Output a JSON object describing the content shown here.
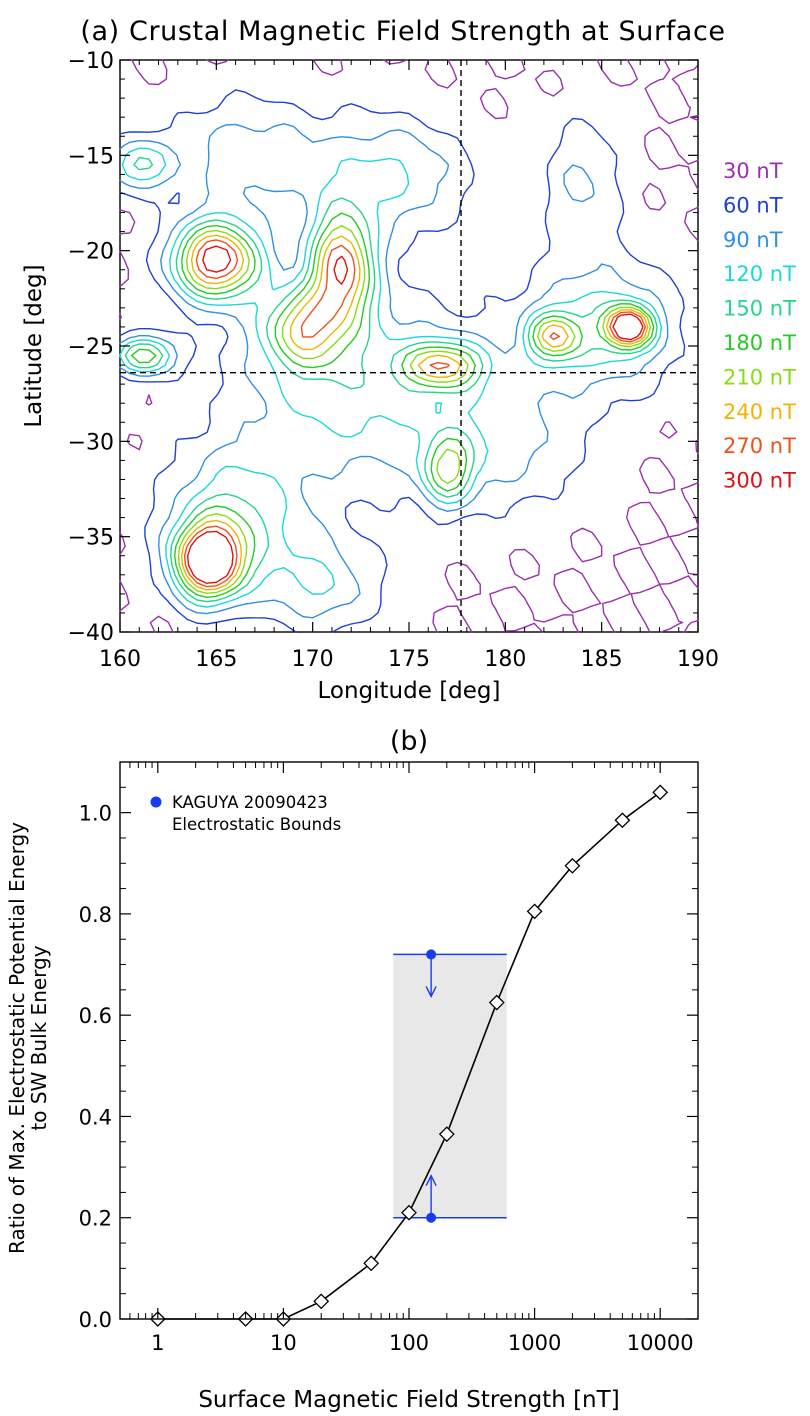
{
  "chart_data": [
    {
      "type": "contour",
      "title": "(a) Crustal Magnetic Field Strength at Surface",
      "xlabel": "Longitude [deg]",
      "ylabel": "Latitude [deg]",
      "xlim": [
        160,
        190
      ],
      "ylim": [
        -40,
        -10
      ],
      "xticks": [
        "160",
        "165",
        "170",
        "175",
        "180",
        "185",
        "190"
      ],
      "yticks": [
        "-10",
        "-15",
        "-20",
        "-25",
        "-30",
        "-35",
        "-40"
      ],
      "crosshair": {
        "longitude": 177.7,
        "latitude": -26.4
      },
      "grid": false,
      "legend_position": "right",
      "levels": [
        {
          "label": "30 nT",
          "value": 30,
          "color": "#9b2fae"
        },
        {
          "label": "60 nT",
          "value": 60,
          "color": "#1f3fd6"
        },
        {
          "label": "90 nT",
          "value": 90,
          "color": "#2f8fe8"
        },
        {
          "label": "120 nT",
          "value": 120,
          "color": "#1ad8d8"
        },
        {
          "label": "150 nT",
          "value": 150,
          "color": "#22d68a"
        },
        {
          "label": "180 nT",
          "value": 180,
          "color": "#22cc22"
        },
        {
          "label": "210 nT",
          "value": 210,
          "color": "#88dd11"
        },
        {
          "label": "240 nT",
          "value": 240,
          "color": "#f0b400"
        },
        {
          "label": "270 nT",
          "value": 270,
          "color": "#f0501c"
        },
        {
          "label": "300 nT",
          "value": 300,
          "color": "#e01010"
        }
      ],
      "peaks": [
        {
          "lon": 165.0,
          "lat": -20.5,
          "peak": 295,
          "rx": 2.2,
          "ry": 2.0
        },
        {
          "lon": 171.5,
          "lat": -20.8,
          "peak": 250,
          "rx": 1.6,
          "ry": 2.8
        },
        {
          "lon": 169.5,
          "lat": -24.0,
          "peak": 165,
          "rx": 2.0,
          "ry": 2.0
        },
        {
          "lon": 164.6,
          "lat": -36.3,
          "peak": 330,
          "rx": 1.7,
          "ry": 1.9
        },
        {
          "lon": 176.8,
          "lat": -26.0,
          "peak": 185,
          "rx": 2.0,
          "ry": 1.2
        },
        {
          "lon": 177.0,
          "lat": -31.5,
          "peak": 150,
          "rx": 1.3,
          "ry": 1.8
        },
        {
          "lon": 182.5,
          "lat": -24.5,
          "peak": 170,
          "rx": 1.3,
          "ry": 1.2
        },
        {
          "lon": 186.4,
          "lat": -24.0,
          "peak": 290,
          "rx": 1.1,
          "ry": 1.0
        },
        {
          "lon": 161.3,
          "lat": -25.5,
          "peak": 175,
          "rx": 1.5,
          "ry": 1.0
        },
        {
          "lon": 161.0,
          "lat": -15.5,
          "peak": 125,
          "rx": 1.5,
          "ry": 1.3
        },
        {
          "lon": 172.0,
          "lat": -27.0,
          "peak": 110,
          "rx": 6.0,
          "ry": 5.0
        },
        {
          "lon": 166.0,
          "lat": -34.0,
          "peak": 120,
          "rx": 3.5,
          "ry": 3.5
        },
        {
          "lon": 174.0,
          "lat": -16.0,
          "peak": 95,
          "rx": 4.0,
          "ry": 3.0
        },
        {
          "lon": 185.0,
          "lat": -24.0,
          "peak": 105,
          "rx": 4.0,
          "ry": 3.5
        },
        {
          "lon": 166.5,
          "lat": -15.0,
          "peak": 80,
          "rx": 4.0,
          "ry": 3.0
        },
        {
          "lon": 170.5,
          "lat": -37.5,
          "peak": 85,
          "rx": 3.0,
          "ry": 2.5
        },
        {
          "lon": 180.0,
          "lat": -30.0,
          "peak": 70,
          "rx": 4.0,
          "ry": 3.5
        },
        {
          "lon": 184.0,
          "lat": -16.5,
          "peak": 65,
          "rx": 2.0,
          "ry": 3.5
        }
      ]
    },
    {
      "type": "line",
      "title": "(b)",
      "xlabel": "Surface Magnetic Field Strength [nT]",
      "ylabel_line1": "Ratio of Max. Electrostatic Potential Energy",
      "ylabel_line2": "to SW Bulk Energy",
      "xscale": "log",
      "xlim": [
        0.5,
        20000
      ],
      "ylim": [
        0.0,
        1.1
      ],
      "xticks": [
        {
          "value": 1,
          "label": "1"
        },
        {
          "value": 10,
          "label": "10"
        },
        {
          "value": 100,
          "label": "100"
        },
        {
          "value": 1000,
          "label": "1000"
        },
        {
          "value": 10000,
          "label": "10000"
        }
      ],
      "yticks": [
        {
          "value": 0.0,
          "label": "0.0"
        },
        {
          "value": 0.2,
          "label": "0.2"
        },
        {
          "value": 0.4,
          "label": "0.4"
        },
        {
          "value": 0.6,
          "label": "0.6"
        },
        {
          "value": 0.8,
          "label": "0.8"
        },
        {
          "value": 1.0,
          "label": "1.0"
        }
      ],
      "grid": false,
      "series": [
        {
          "marker": "diamond",
          "color": "#000000",
          "x": [
            1,
            5,
            10,
            20,
            50,
            100,
            200,
            500,
            1000,
            2000,
            5000,
            10000
          ],
          "y": [
            0.0,
            0.0,
            0.0,
            0.035,
            0.11,
            0.21,
            0.365,
            0.625,
            0.805,
            0.895,
            0.985,
            1.04
          ]
        }
      ],
      "bounds": {
        "color": "#1a3cf0",
        "fill": "#e8e8e8",
        "x_range": [
          75,
          600
        ],
        "point_x": 150,
        "upper": 0.72,
        "lower": 0.2
      },
      "legend": {
        "position": "top-left",
        "line1": "KAGUYA 20090423",
        "line2": "Electrostatic Bounds"
      }
    }
  ]
}
